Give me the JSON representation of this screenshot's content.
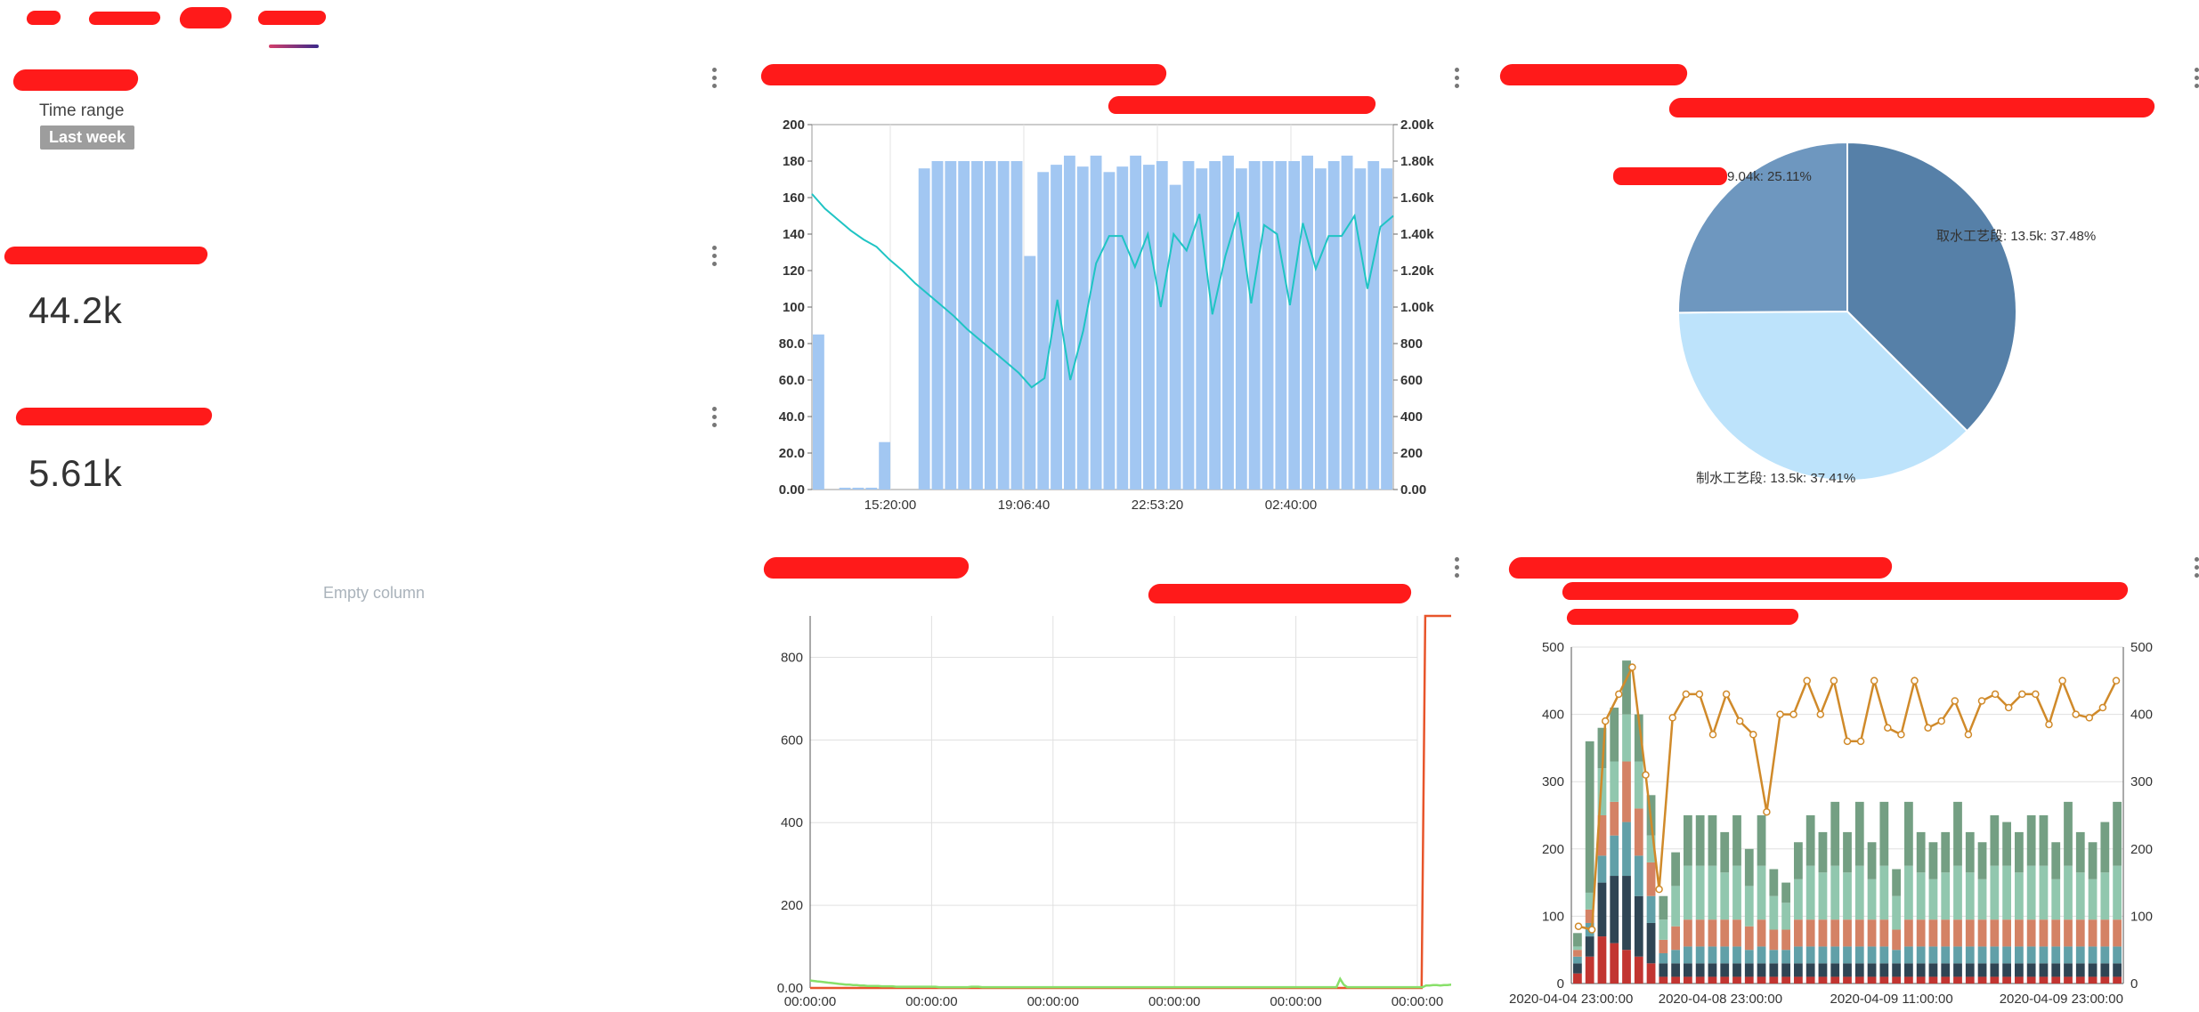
{
  "filter": {
    "label": "Time range",
    "value": "Last week"
  },
  "kpis": [
    {
      "value": "44.2k"
    },
    {
      "value": "5.61k"
    }
  ],
  "empty_column": {
    "label": "Empty column"
  },
  "chart_data": [
    {
      "type": "bar",
      "title": "",
      "x_ticks": [
        "15:20:00",
        "19:06:40",
        "22:53:20",
        "02:40:00"
      ],
      "y_left_ticks": [
        "0.00",
        "20.0",
        "40.0",
        "60.0",
        "80.0",
        "100",
        "120",
        "140",
        "160",
        "180",
        "200"
      ],
      "y_right_ticks": [
        "0.00",
        "200",
        "400",
        "600",
        "800",
        "1.00k",
        "1.20k",
        "1.40k",
        "1.60k",
        "1.80k",
        "2.00k"
      ],
      "ylim": [
        0,
        200
      ],
      "y2lim": [
        0,
        2000
      ],
      "series": [
        {
          "kind": "bar",
          "color": "#a2c7f2",
          "values": [
            85,
            0,
            1,
            1,
            1,
            26,
            0,
            0,
            176,
            180,
            180,
            180,
            180,
            180,
            180,
            180,
            128,
            174,
            178,
            183,
            177,
            183,
            174,
            177,
            183,
            178,
            180,
            167,
            180,
            176,
            180,
            183,
            176,
            180,
            180,
            180,
            180,
            183,
            176,
            180,
            183,
            176,
            180,
            176
          ]
        },
        {
          "kind": "line",
          "axis": "right",
          "color": "#1fc4c4",
          "values": [
            1620,
            1540,
            1480,
            1420,
            1370,
            1330,
            1260,
            1200,
            1130,
            1070,
            1010,
            950,
            880,
            820,
            760,
            700,
            640,
            560,
            610,
            1040,
            600,
            870,
            1240,
            1390,
            1390,
            1220,
            1400,
            1000,
            1400,
            1310,
            1510,
            960,
            1280,
            1520,
            1020,
            1450,
            1400,
            1010,
            1460,
            1210,
            1390,
            1390,
            1500,
            1100,
            1440,
            1500
          ]
        }
      ]
    },
    {
      "type": "pie",
      "slices": [
        {
          "label": "9.04k: 25.11%",
          "value": 25.11,
          "color": "#6e97bf"
        },
        {
          "label": "取水工艺段: 13.5k: 37.48%",
          "value": 37.48,
          "color": "#5680a8"
        },
        {
          "label": "制水工艺段: 13.5k: 37.41%",
          "value": 37.41,
          "color": "#bde3fb"
        }
      ]
    },
    {
      "type": "line",
      "x_ticks": [
        "00:00:00",
        "00:00:00",
        "00:00:00",
        "00:00:00",
        "00:00:00",
        "00:00:00"
      ],
      "y_ticks": [
        "0.00",
        "200",
        "400",
        "600",
        "800"
      ],
      "ylim": [
        0,
        900
      ],
      "series": [
        {
          "color": "#e8552b",
          "values": [
            0,
            0,
            0,
            0,
            0,
            0,
            0,
            0,
            0,
            0,
            0,
            0,
            0,
            0,
            0,
            0,
            0,
            0,
            0,
            0,
            0,
            0,
            0,
            0,
            0,
            0,
            0,
            0,
            0,
            0,
            0,
            0,
            0,
            0,
            0,
            0,
            0,
            0,
            0,
            0,
            0,
            0,
            0,
            0,
            0,
            0,
            0,
            0,
            0,
            0,
            0,
            0,
            0,
            0,
            0,
            0,
            0,
            0,
            0,
            0,
            0,
            0,
            0,
            0,
            0,
            0,
            0,
            0,
            0,
            0,
            0,
            0,
            0,
            0,
            0,
            0,
            0,
            0,
            0,
            0,
            0,
            0,
            0,
            0,
            0,
            0,
            0,
            0,
            0,
            0,
            0,
            0,
            0,
            0,
            0,
            0,
            0,
            0,
            0,
            0,
            0,
            0,
            0,
            0,
            0,
            0,
            0,
            0,
            0,
            0,
            0,
            0,
            0,
            0,
            0,
            0,
            0,
            0,
            0,
            0,
            0,
            0,
            0,
            0,
            0,
            0,
            0,
            0,
            0,
            0,
            0,
            0,
            0,
            0,
            0,
            0,
            0,
            0,
            0,
            0,
            0,
            0,
            0,
            0,
            0,
            0,
            0,
            0,
            0,
            0,
            0,
            0,
            0,
            0,
            0,
            0,
            0,
            0,
            0,
            0,
            0,
            0,
            0,
            0,
            0,
            0,
            0,
            0,
            900,
            900,
            900,
            900,
            900,
            900,
            900,
            900,
            900,
            900,
            900
          ]
        },
        {
          "color": "#88e06a",
          "values": [
            18,
            17,
            16,
            15,
            14,
            13,
            12,
            11,
            10,
            9,
            8,
            8,
            7,
            7,
            6,
            6,
            5,
            5,
            5,
            5,
            4,
            4,
            4,
            4,
            3,
            3,
            3,
            3,
            3,
            3,
            3,
            3,
            3,
            3,
            3,
            3,
            2,
            2,
            2,
            2,
            2,
            2,
            2,
            2,
            2,
            3,
            3,
            3,
            2,
            2,
            2,
            2,
            2,
            2,
            2,
            2,
            2,
            2,
            2,
            2,
            2,
            2,
            2,
            2,
            2,
            2,
            2,
            2,
            2,
            2,
            2,
            2,
            2,
            2,
            2,
            2,
            2,
            2,
            2,
            2,
            2,
            2,
            2,
            2,
            2,
            2,
            2,
            2,
            2,
            2,
            2,
            2,
            2,
            2,
            2,
            2,
            2,
            2,
            2,
            2,
            2,
            2,
            2,
            2,
            2,
            2,
            2,
            2,
            2,
            2,
            2,
            2,
            2,
            2,
            2,
            2,
            2,
            2,
            2,
            2,
            2,
            2,
            2,
            2,
            2,
            2,
            2,
            2,
            2,
            2,
            2,
            2,
            2,
            2,
            2,
            2,
            2,
            2,
            2,
            2,
            2,
            2,
            2,
            2,
            2,
            2,
            2,
            2,
            22,
            8,
            2,
            2,
            2,
            2,
            2,
            2,
            2,
            2,
            2,
            2,
            2,
            2,
            2,
            2,
            2,
            2,
            2,
            2,
            2,
            2,
            2,
            2,
            6,
            6,
            7,
            7,
            6,
            7,
            7,
            8,
            7,
            8,
            7
          ]
        }
      ]
    },
    {
      "type": "bar",
      "stacked": true,
      "x_ticks": [
        "2020-04-04 23:00:00",
        "2020-04-08 23:00:00",
        "2020-04-09 11:00:00",
        "2020-04-09 23:00:00"
      ],
      "y_ticks": [
        "0",
        "100",
        "200",
        "300",
        "400",
        "500"
      ],
      "y_right_ticks": [
        "0",
        "100",
        "200",
        "300",
        "400",
        "500"
      ],
      "ylim": [
        0,
        500
      ],
      "stack_colors": [
        "#c23531",
        "#2f4554",
        "#61a0a8",
        "#d48265",
        "#91c7ae",
        "#749f83"
      ],
      "stacks": [
        [
          15,
          15,
          10,
          10,
          5,
          20
        ],
        [
          40,
          30,
          20,
          20,
          25,
          225
        ],
        [
          70,
          80,
          40,
          60,
          70,
          60
        ],
        [
          60,
          100,
          60,
          50,
          60,
          80
        ],
        [
          50,
          110,
          80,
          90,
          70,
          80
        ],
        [
          40,
          90,
          60,
          70,
          70,
          70
        ],
        [
          30,
          60,
          40,
          50,
          40,
          60
        ],
        [
          10,
          20,
          15,
          20,
          30,
          35
        ],
        [
          10,
          20,
          20,
          35,
          60,
          50
        ],
        [
          10,
          20,
          25,
          40,
          80,
          75
        ],
        [
          10,
          20,
          25,
          40,
          80,
          75
        ],
        [
          10,
          20,
          25,
          40,
          80,
          75
        ],
        [
          10,
          20,
          25,
          40,
          70,
          60
        ],
        [
          10,
          20,
          25,
          40,
          80,
          75
        ],
        [
          10,
          20,
          20,
          35,
          60,
          55
        ],
        [
          10,
          20,
          25,
          40,
          80,
          75
        ],
        [
          10,
          20,
          20,
          30,
          50,
          40
        ],
        [
          10,
          20,
          20,
          30,
          40,
          30
        ],
        [
          10,
          20,
          25,
          40,
          60,
          55
        ],
        [
          10,
          20,
          25,
          40,
          80,
          75
        ],
        [
          10,
          20,
          25,
          40,
          70,
          60
        ],
        [
          10,
          20,
          25,
          40,
          80,
          95
        ],
        [
          10,
          20,
          25,
          40,
          70,
          60
        ],
        [
          10,
          20,
          25,
          40,
          80,
          95
        ],
        [
          10,
          20,
          25,
          40,
          60,
          55
        ],
        [
          10,
          20,
          25,
          40,
          80,
          95
        ],
        [
          10,
          20,
          20,
          30,
          50,
          40
        ],
        [
          10,
          20,
          25,
          40,
          80,
          95
        ],
        [
          10,
          20,
          25,
          40,
          70,
          60
        ],
        [
          10,
          20,
          25,
          40,
          60,
          55
        ],
        [
          10,
          20,
          25,
          40,
          70,
          60
        ],
        [
          10,
          20,
          25,
          40,
          80,
          95
        ],
        [
          10,
          20,
          25,
          40,
          70,
          60
        ],
        [
          10,
          20,
          25,
          40,
          60,
          55
        ],
        [
          10,
          20,
          25,
          40,
          80,
          75
        ],
        [
          10,
          20,
          25,
          40,
          80,
          65
        ],
        [
          10,
          20,
          25,
          40,
          70,
          60
        ],
        [
          10,
          20,
          25,
          40,
          80,
          75
        ],
        [
          10,
          20,
          25,
          40,
          80,
          75
        ],
        [
          10,
          20,
          25,
          40,
          60,
          55
        ],
        [
          10,
          20,
          25,
          40,
          80,
          95
        ],
        [
          10,
          20,
          25,
          40,
          70,
          60
        ],
        [
          10,
          20,
          25,
          40,
          60,
          55
        ],
        [
          10,
          20,
          25,
          40,
          70,
          75
        ],
        [
          10,
          20,
          25,
          40,
          80,
          95
        ]
      ],
      "line": {
        "color": "#d08a2a",
        "values": [
          85,
          80,
          390,
          430,
          470,
          310,
          140,
          395,
          430,
          430,
          370,
          430,
          390,
          370,
          255,
          400,
          400,
          450,
          400,
          450,
          360,
          360,
          450,
          380,
          370,
          450,
          380,
          390,
          420,
          370,
          420,
          430,
          410,
          430,
          430,
          385,
          450,
          400,
          395,
          410,
          450
        ]
      }
    }
  ]
}
